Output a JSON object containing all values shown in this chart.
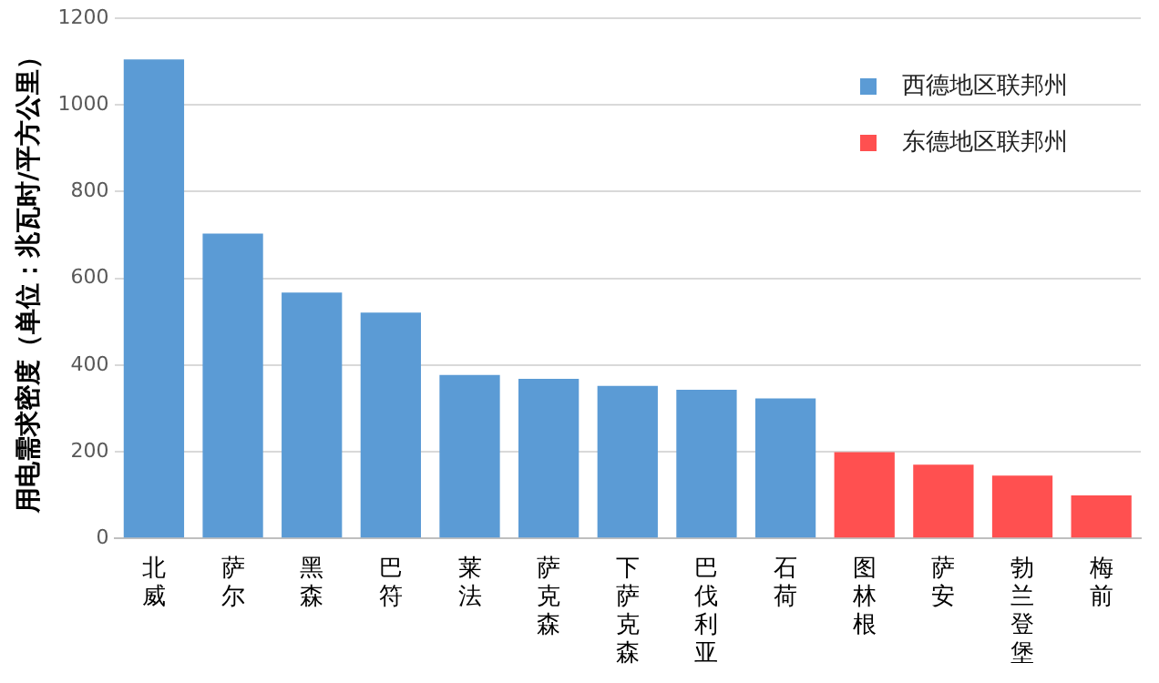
{
  "chart_data": {
    "type": "bar",
    "ylabel": "用电需求密度（单位：兆瓦时/平方公里）",
    "categories": [
      "北威",
      "萨尔",
      "黑森",
      "巴符",
      "莱法",
      "萨克森",
      "下萨克森",
      "巴伐利亚",
      "石荷",
      "图林根",
      "萨安",
      "勃兰登堡",
      "梅前"
    ],
    "series": [
      {
        "name": "西德地区联邦州",
        "color": "#5b9bd5",
        "values": [
          1105,
          703,
          567,
          521,
          377,
          368,
          352,
          343,
          323,
          null,
          null,
          null,
          null
        ]
      },
      {
        "name": "东德地区联邦州",
        "color": "#ff5050",
        "values": [
          null,
          null,
          null,
          null,
          null,
          null,
          null,
          null,
          null,
          199,
          170,
          145,
          99
        ]
      }
    ],
    "ylim": [
      0,
      1200
    ],
    "yticks": [
      0,
      200,
      400,
      600,
      800,
      1000,
      1200
    ],
    "grid": "y",
    "legend": "top right"
  }
}
